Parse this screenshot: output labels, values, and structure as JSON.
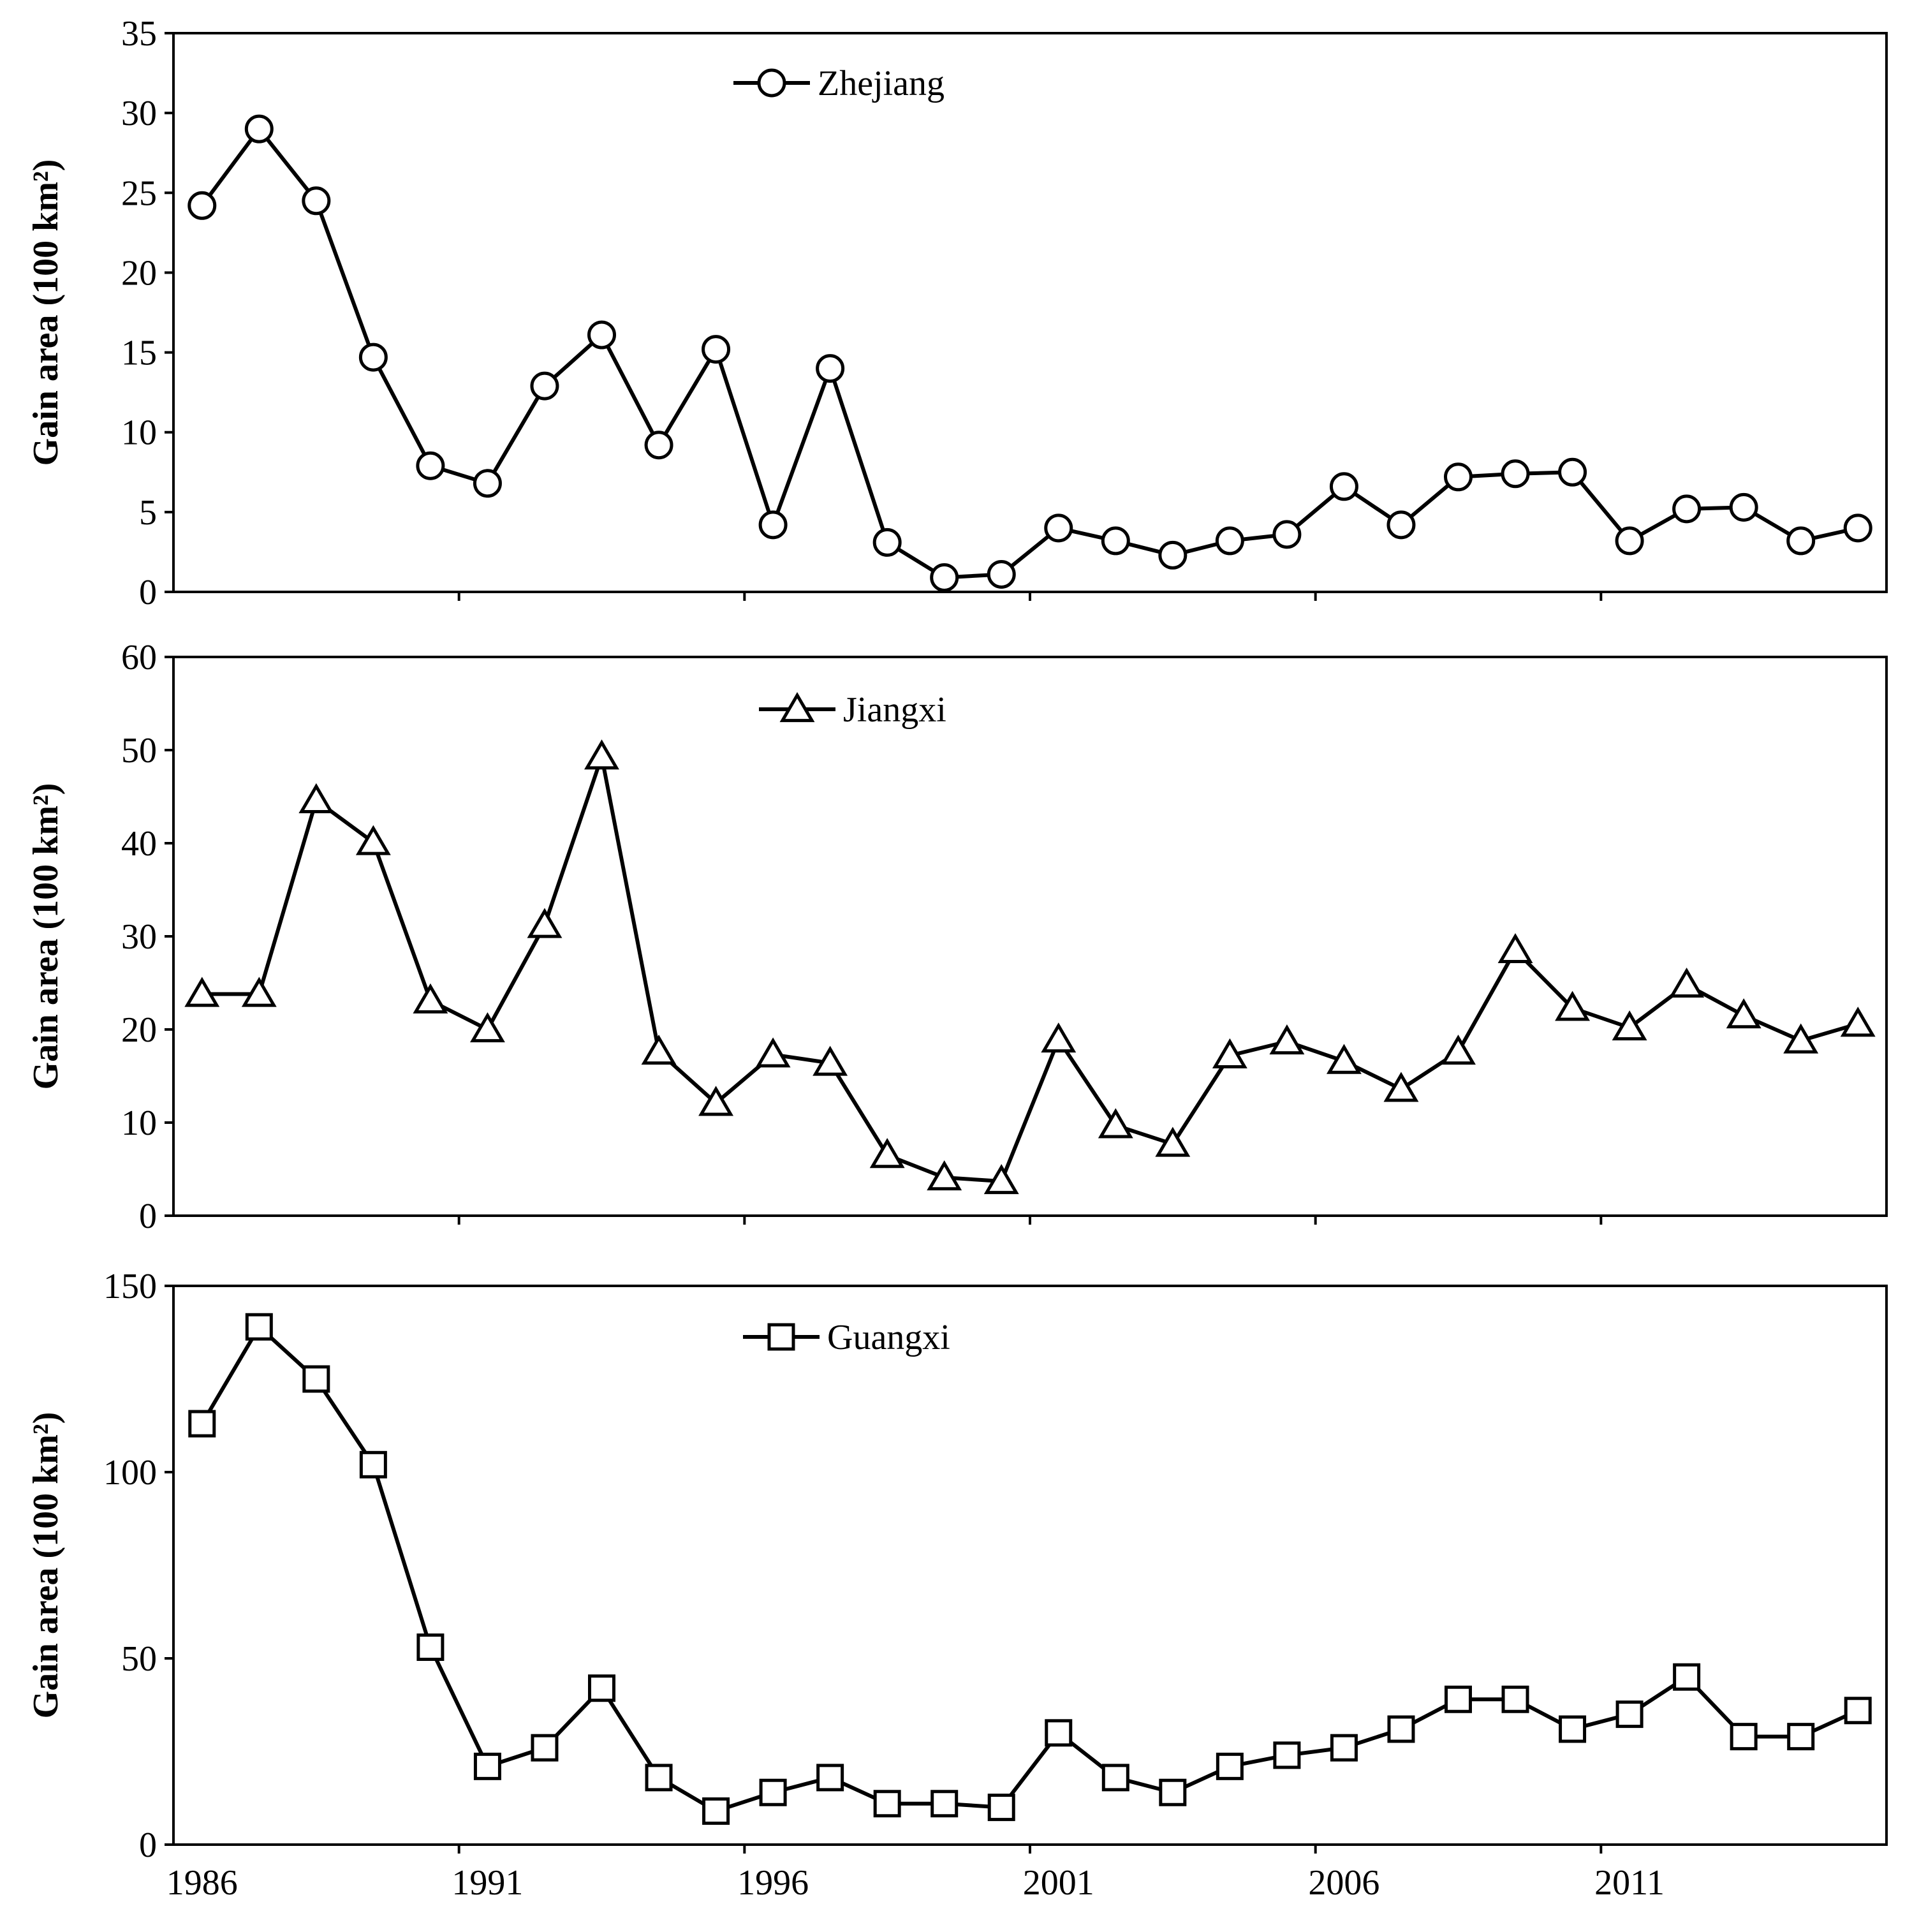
{
  "chart_data": [
    {
      "type": "line",
      "title": "",
      "ylabel": "Gain area (100 km²)",
      "xlabel": "",
      "x": [
        1986,
        1987,
        1988,
        1989,
        1990,
        1991,
        1992,
        1993,
        1994,
        1995,
        1996,
        1997,
        1998,
        1999,
        2000,
        2001,
        2002,
        2003,
        2004,
        2005,
        2006,
        2007,
        2008,
        2009,
        2010,
        2011,
        2012,
        2013,
        2014,
        2015
      ],
      "xlim": [
        1985.5,
        2015.5
      ],
      "ylim": [
        0,
        35
      ],
      "yticks": [
        "0",
        "5",
        "10",
        "15",
        "20",
        "25",
        "30",
        "35"
      ],
      "xticks": [],
      "marker": "circle",
      "legend_position": "top-center",
      "series": [
        {
          "name": "Zhejiang",
          "values": [
            24.2,
            29.0,
            24.5,
            14.7,
            7.9,
            6.8,
            12.9,
            16.1,
            9.2,
            15.2,
            4.2,
            14.0,
            3.1,
            0.9,
            1.1,
            4.0,
            3.2,
            2.3,
            3.2,
            3.6,
            6.6,
            4.2,
            7.2,
            7.4,
            7.5,
            3.2,
            5.2,
            5.3,
            3.2,
            4.0
          ]
        }
      ]
    },
    {
      "type": "line",
      "title": "",
      "ylabel": "Gain area (100 km²)",
      "xlabel": "",
      "x": [
        1986,
        1987,
        1988,
        1989,
        1990,
        1991,
        1992,
        1993,
        1994,
        1995,
        1996,
        1997,
        1998,
        1999,
        2000,
        2001,
        2002,
        2003,
        2004,
        2005,
        2006,
        2007,
        2008,
        2009,
        2010,
        2011,
        2012,
        2013,
        2014,
        2015
      ],
      "xlim": [
        1985.5,
        2015.5
      ],
      "ylim": [
        0,
        60
      ],
      "yticks": [
        "0",
        "10",
        "20",
        "30",
        "40",
        "50",
        "60"
      ],
      "xticks": [],
      "marker": "triangle",
      "legend_position": "top-center",
      "series": [
        {
          "name": "Jiangxi",
          "values": [
            23.8,
            23.8,
            44.6,
            40.1,
            23.1,
            20.0,
            31.2,
            49.3,
            17.6,
            12.1,
            17.3,
            16.4,
            6.5,
            4.1,
            3.7,
            18.9,
            9.7,
            7.7,
            17.2,
            18.7,
            16.6,
            13.6,
            17.6,
            28.5,
            22.3,
            20.2,
            24.8,
            21.5,
            18.8,
            20.6
          ]
        }
      ]
    },
    {
      "type": "line",
      "title": "",
      "ylabel": "Gain area (100 km²)",
      "xlabel": "",
      "x": [
        1986,
        1987,
        1988,
        1989,
        1990,
        1991,
        1992,
        1993,
        1994,
        1995,
        1996,
        1997,
        1998,
        1999,
        2000,
        2001,
        2002,
        2003,
        2004,
        2005,
        2006,
        2007,
        2008,
        2009,
        2010,
        2011,
        2012,
        2013,
        2014,
        2015
      ],
      "xlim": [
        1985.5,
        2015.5
      ],
      "ylim": [
        0,
        150
      ],
      "yticks": [
        "0",
        "50",
        "100",
        "150"
      ],
      "xticks": [
        "1986",
        "1991",
        "1996",
        "2001",
        "2006",
        "2011"
      ],
      "marker": "square",
      "legend_position": "top-center",
      "series": [
        {
          "name": "Guangxi",
          "values": [
            113,
            139,
            125,
            102,
            53,
            21,
            26,
            42,
            18,
            9,
            14,
            18,
            11,
            11,
            10,
            30,
            18,
            14,
            21,
            24,
            26,
            31,
            39,
            39,
            31,
            35,
            45,
            29,
            29,
            36
          ]
        }
      ]
    }
  ]
}
